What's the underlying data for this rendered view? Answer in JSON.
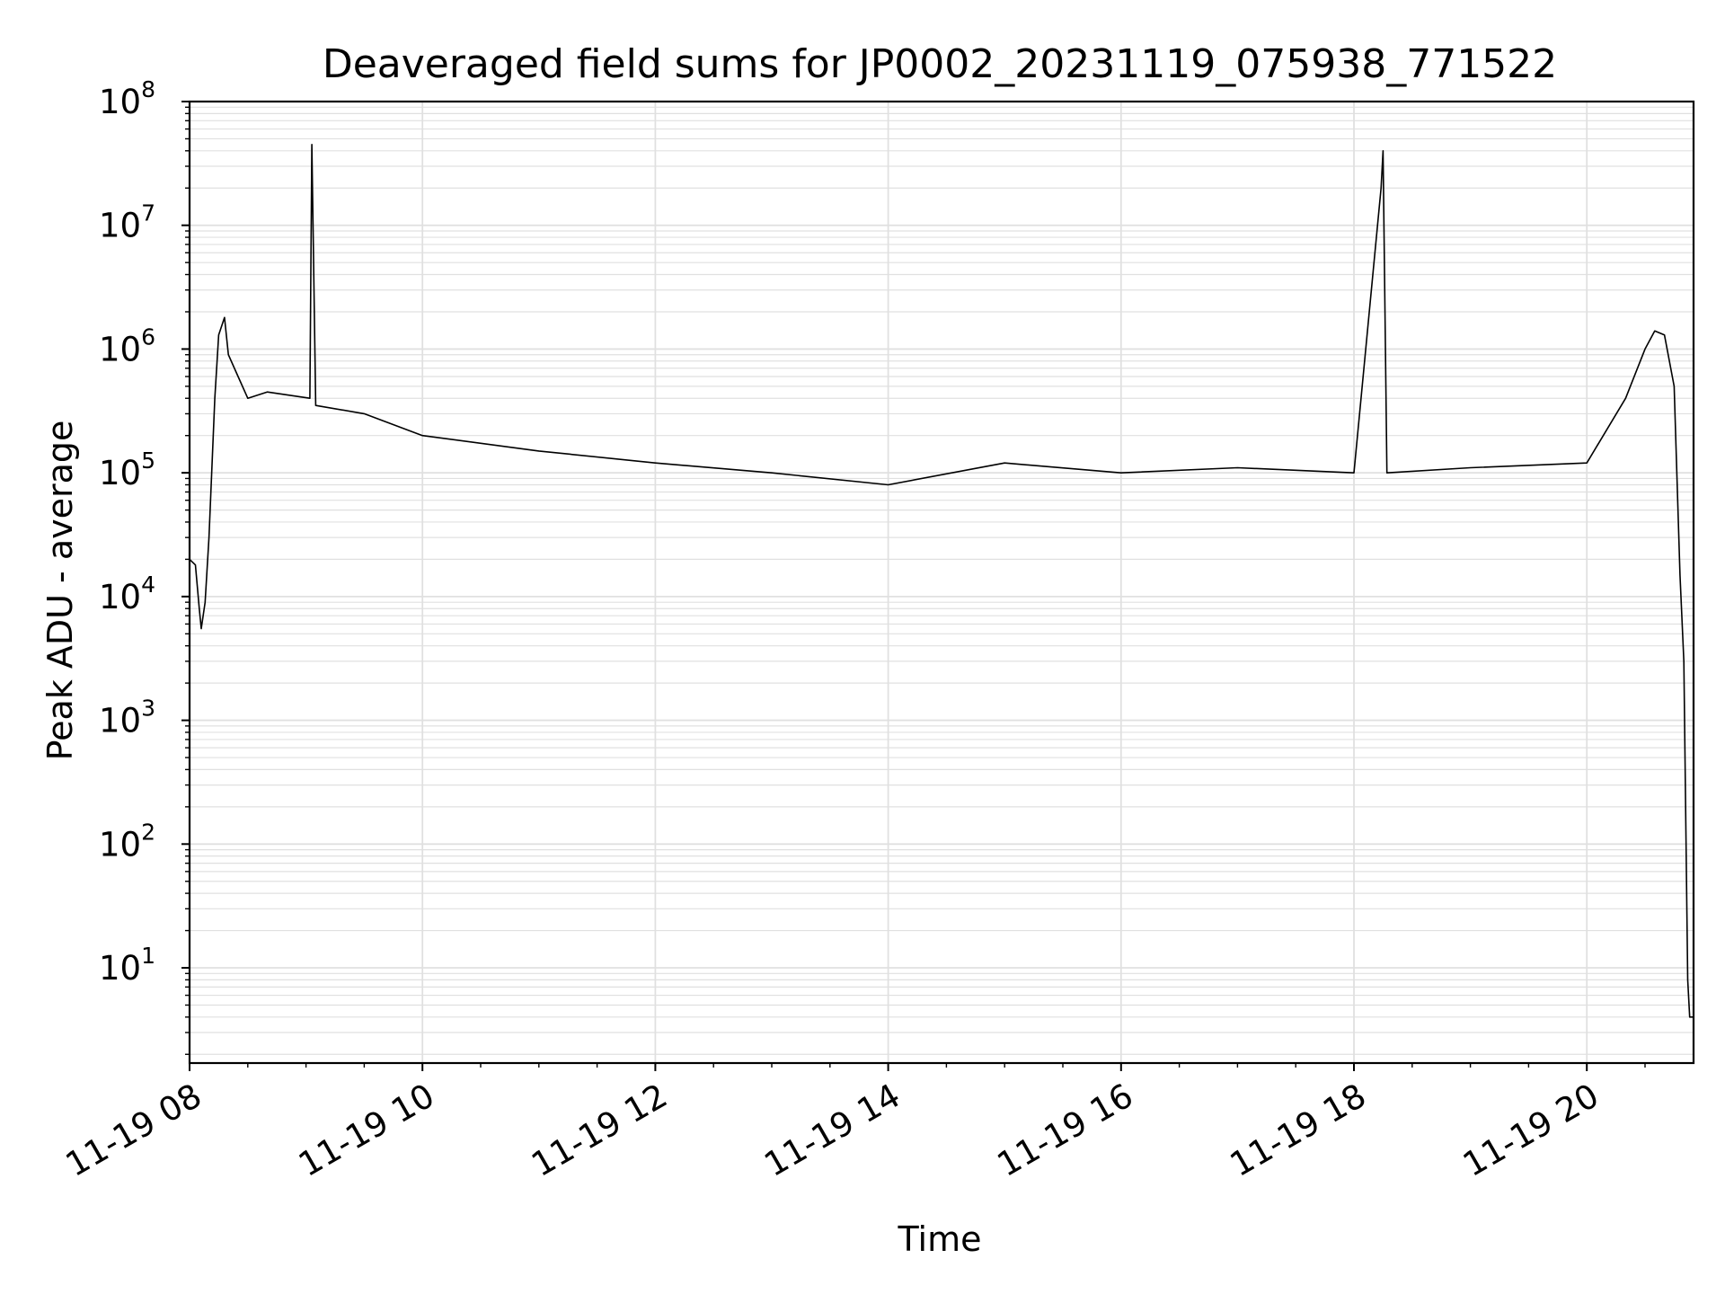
{
  "chart_data": {
    "type": "line",
    "title": "Deaveraged field sums for JP0002_20231119_075938_771522",
    "xlabel": "Time",
    "ylabel": "Peak ADU - average",
    "y_scale": "log",
    "xlim": [
      "2023-11-19 08:00",
      "2023-11-19 20:55"
    ],
    "ylim": [
      1.7,
      100000000
    ],
    "grid": true,
    "line_color": "#000000",
    "grid_color": "#e0e0e0",
    "x_ticks": [
      {
        "value": "2023-11-19 08:00",
        "label": "11-19 08"
      },
      {
        "value": "2023-11-19 10:00",
        "label": "11-19 10"
      },
      {
        "value": "2023-11-19 12:00",
        "label": "11-19 12"
      },
      {
        "value": "2023-11-19 14:00",
        "label": "11-19 14"
      },
      {
        "value": "2023-11-19 16:00",
        "label": "11-19 16"
      },
      {
        "value": "2023-11-19 18:00",
        "label": "11-19 18"
      },
      {
        "value": "2023-11-19 20:00",
        "label": "11-19 20"
      }
    ],
    "y_ticks": [
      {
        "value": 10,
        "base": "10",
        "exp": "1"
      },
      {
        "value": 100,
        "base": "10",
        "exp": "2"
      },
      {
        "value": 1000,
        "base": "10",
        "exp": "3"
      },
      {
        "value": 10000,
        "base": "10",
        "exp": "4"
      },
      {
        "value": 100000,
        "base": "10",
        "exp": "5"
      },
      {
        "value": 1000000,
        "base": "10",
        "exp": "6"
      },
      {
        "value": 10000000,
        "base": "10",
        "exp": "7"
      },
      {
        "value": 100000000,
        "base": "10",
        "exp": "8"
      }
    ],
    "series": [
      {
        "x": [
          "2023-11-19 08:00",
          "2023-11-19 08:03",
          "2023-11-19 08:05",
          "2023-11-19 08:06",
          "2023-11-19 08:08",
          "2023-11-19 08:10",
          "2023-11-19 08:13",
          "2023-11-19 08:15",
          "2023-11-19 08:18",
          "2023-11-19 08:20",
          "2023-11-19 08:25",
          "2023-11-19 08:30",
          "2023-11-19 08:40",
          "2023-11-19 09:02",
          "2023-11-19 09:03",
          "2023-11-19 09:05",
          "2023-11-19 09:30",
          "2023-11-19 10:00",
          "2023-11-19 11:00",
          "2023-11-19 12:00",
          "2023-11-19 13:00",
          "2023-11-19 14:00",
          "2023-11-19 15:00",
          "2023-11-19 16:00",
          "2023-11-19 17:00",
          "2023-11-19 18:00",
          "2023-11-19 18:14",
          "2023-11-19 18:15",
          "2023-11-19 18:17",
          "2023-11-19 19:00",
          "2023-11-19 20:00",
          "2023-11-19 20:20",
          "2023-11-19 20:30",
          "2023-11-19 20:35",
          "2023-11-19 20:40",
          "2023-11-19 20:45",
          "2023-11-19 20:48",
          "2023-11-19 20:50",
          "2023-11-19 20:52",
          "2023-11-19 20:53",
          "2023-11-19 20:55"
        ],
        "y": [
          20000,
          18000,
          8000,
          5500,
          9000,
          30000,
          400000,
          1300000,
          1800000,
          900000,
          600000,
          400000,
          450000,
          400000,
          45000000,
          350000,
          300000,
          200000,
          150000,
          120000,
          100000,
          80000,
          120000,
          100000,
          110000,
          100000,
          20000000,
          40000000,
          100000,
          110000,
          120000,
          400000,
          1000000,
          1400000,
          1300000,
          500000,
          15000,
          3000,
          8,
          4,
          4
        ]
      }
    ]
  }
}
